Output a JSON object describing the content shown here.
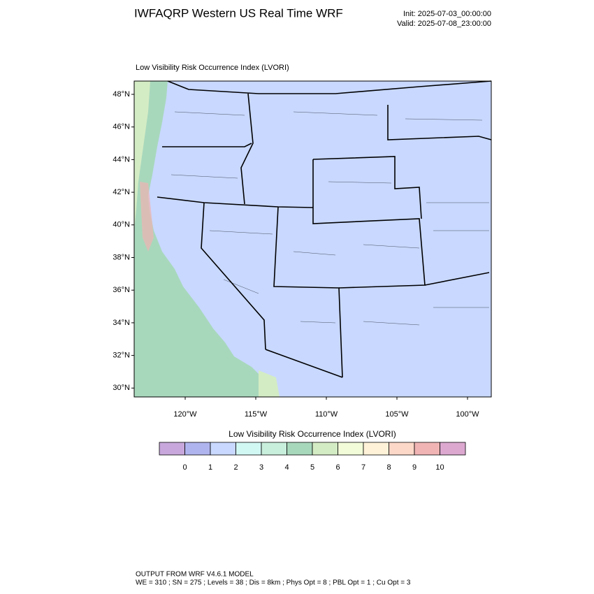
{
  "header": {
    "title": "IWFAQRP Western US Real Time WRF",
    "init": "Init: 2025-07-03_00:00:00",
    "valid": "Valid: 2025-07-08_23:00:00"
  },
  "map": {
    "subtitle": "Low Visibility Risk Occurrence Index   (LVORI)",
    "lat_labels": [
      "48°N",
      "46°N",
      "44°N",
      "42°N",
      "40°N",
      "38°N",
      "36°N",
      "34°N",
      "32°N",
      "30°N"
    ],
    "lon_labels": [
      "120°W",
      "115°W",
      "110°W",
      "105°W",
      "100°W"
    ]
  },
  "colorbar": {
    "title": "Low Visibility Risk Occurrence Index  (LVORI)",
    "labels": [
      "0",
      "1",
      "2",
      "3",
      "4",
      "5",
      "6",
      "7",
      "8",
      "9",
      "10"
    ],
    "colors": [
      "#c8a8dc",
      "#b0b4ee",
      "#c8d8ff",
      "#d2f8f4",
      "#c8eedc",
      "#a8d8bc",
      "#d4ecc4",
      "#f2fcd8",
      "#fff2d8",
      "#fcd8c8",
      "#f0b4b4",
      "#dca8d0"
    ]
  },
  "footer": {
    "line1": "OUTPUT FROM WRF V4.6.1 MODEL",
    "line2": "WE = 310 ; SN = 275 ; Levels = 38 ; Dis = 8km ; Phys Opt = 8 ; PBL Opt = 1 ; Cu Opt = 3"
  }
}
